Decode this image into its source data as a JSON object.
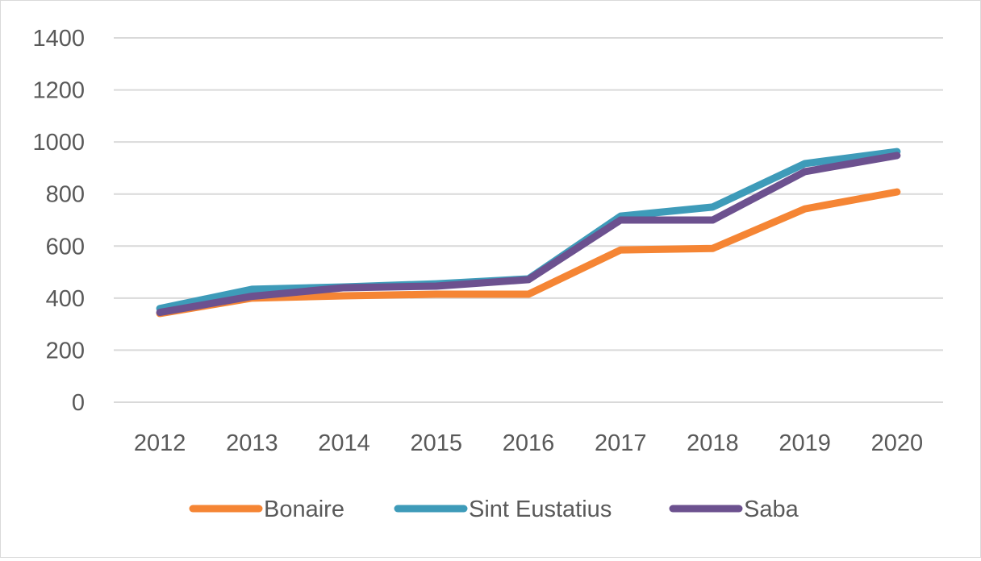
{
  "chart_data": {
    "type": "line",
    "title": "",
    "xlabel": "",
    "ylabel": "",
    "categories": [
      "2012",
      "2013",
      "2014",
      "2015",
      "2016",
      "2017",
      "2018",
      "2019",
      "2020"
    ],
    "ylim": [
      0,
      1400
    ],
    "yticks": [
      "0",
      "200",
      "400",
      "600",
      "800",
      "1000",
      "1200",
      "1400"
    ],
    "grid": true,
    "legend_position": "bottom",
    "series": [
      {
        "name": "Bonaire",
        "color": "#f58534",
        "values": [
          341,
          400,
          409,
          415,
          415,
          585,
          591,
          743,
          808
        ]
      },
      {
        "name": "Sint Eustatius",
        "color": "#3e9bb9",
        "values": [
          360,
          434,
          443,
          455,
          474,
          715,
          750,
          917,
          963
        ]
      },
      {
        "name": "Saba",
        "color": "#6c518f",
        "values": [
          345,
          407,
          440,
          446,
          471,
          700,
          700,
          886,
          948
        ]
      }
    ]
  }
}
